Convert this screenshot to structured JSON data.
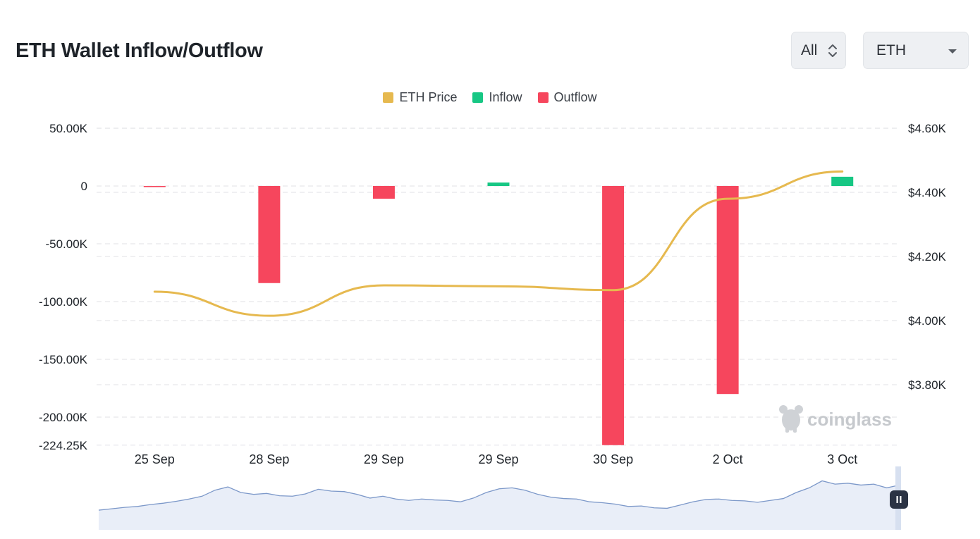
{
  "page": {
    "title": "ETH Wallet Inflow/Outflow"
  },
  "controls": {
    "range_label": "All",
    "coin_label": "ETH"
  },
  "legend": [
    {
      "label": "ETH Price",
      "color": "#e6b94f"
    },
    {
      "label": "Inflow",
      "color": "#17c784"
    },
    {
      "label": "Outflow",
      "color": "#f6465d"
    }
  ],
  "watermark": "coinglass",
  "chart_data": {
    "type": "bar",
    "title": "ETH Wallet Inflow/Outflow",
    "categories": [
      "25 Sep",
      "28 Sep",
      "29 Sep",
      "29 Sep",
      "30 Sep",
      "2 Oct",
      "3 Oct"
    ],
    "series": [
      {
        "name": "Inflow",
        "color": "#17c784",
        "values": [
          0,
          0,
          0,
          3000,
          0,
          0,
          8000
        ]
      },
      {
        "name": "Outflow",
        "color": "#f6465d",
        "values": [
          -600,
          -84000,
          -11000,
          0,
          -224250,
          -180000,
          0
        ]
      },
      {
        "name": "ETH Price",
        "type": "line",
        "axis": "right",
        "color": "#e6b94f",
        "values": [
          4090,
          4015,
          4110,
          4107,
          4095,
          4380,
          4465
        ]
      }
    ],
    "y_left": {
      "min": -224250,
      "max": 50000,
      "ticks": [
        50000,
        0,
        -50000,
        -100000,
        -150000,
        -200000,
        -224250
      ],
      "tick_labels": [
        "50.00K",
        "0",
        "-50.00K",
        "-100.00K",
        "-150.00K",
        "-200.00K",
        "-224.25K"
      ]
    },
    "y_right": {
      "min": 3600,
      "max": 4600,
      "ticks": [
        4600,
        4400,
        4200,
        4000,
        3800
      ],
      "tick_labels": [
        "$4.60K",
        "$4.40K",
        "$4.20K",
        "$4.00K",
        "$3.80K"
      ]
    },
    "grid": true,
    "legend_position": "top-center"
  },
  "navigator": {
    "series": [
      0.12,
      0.15,
      0.18,
      0.2,
      0.24,
      0.27,
      0.31,
      0.36,
      0.42,
      0.55,
      0.62,
      0.5,
      0.46,
      0.48,
      0.43,
      0.42,
      0.47,
      0.57,
      0.53,
      0.52,
      0.46,
      0.38,
      0.42,
      0.36,
      0.33,
      0.36,
      0.34,
      0.33,
      0.3,
      0.38,
      0.5,
      0.58,
      0.6,
      0.55,
      0.46,
      0.4,
      0.37,
      0.36,
      0.3,
      0.28,
      0.25,
      0.2,
      0.21,
      0.17,
      0.16,
      0.23,
      0.3,
      0.35,
      0.36,
      0.33,
      0.32,
      0.29,
      0.33,
      0.37,
      0.5,
      0.6,
      0.75,
      0.68,
      0.7,
      0.66,
      0.68,
      0.6,
      0.66
    ]
  }
}
